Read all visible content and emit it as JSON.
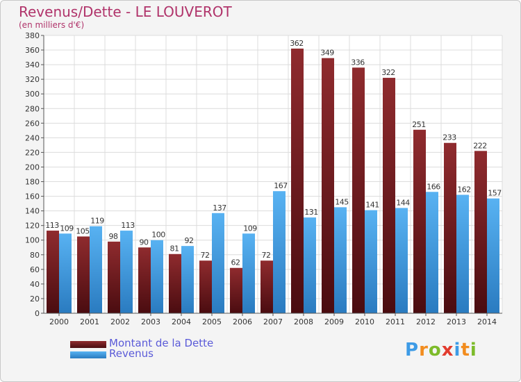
{
  "header": {
    "title": "Revenus/Dette - LE LOUVEROT",
    "subtitle": "(en milliers d'€)"
  },
  "colors": {
    "dette": "#7a1e22",
    "revenus": "#3d9be6",
    "title": "#b0336a",
    "legend_text": "#5a5ad8"
  },
  "logo": {
    "text": "Proxiti",
    "letters": [
      "P",
      "r",
      "o",
      "x",
      "i",
      "t",
      "i"
    ]
  },
  "chart_data": {
    "type": "bar",
    "title": "Revenus/Dette - LE LOUVEROT",
    "subtitle": "(en milliers d'€)",
    "categories": [
      "2000",
      "2001",
      "2002",
      "2003",
      "2004",
      "2005",
      "2006",
      "2007",
      "2008",
      "2009",
      "2010",
      "2011",
      "2012",
      "2013",
      "2014"
    ],
    "series": [
      {
        "name": "Montant de la Dette",
        "values": [
          113,
          105,
          98,
          90,
          81,
          72,
          62,
          72,
          362,
          349,
          336,
          322,
          251,
          233,
          222
        ]
      },
      {
        "name": "Revenus",
        "values": [
          109,
          119,
          113,
          100,
          92,
          137,
          109,
          167,
          131,
          145,
          141,
          144,
          166,
          162,
          157
        ]
      }
    ],
    "ylim": [
      0,
      380
    ],
    "yticks": [
      0,
      20,
      40,
      60,
      80,
      100,
      120,
      140,
      160,
      180,
      200,
      220,
      240,
      260,
      280,
      300,
      320,
      340,
      360,
      380
    ],
    "grid": true,
    "legend": "bottom-left"
  }
}
